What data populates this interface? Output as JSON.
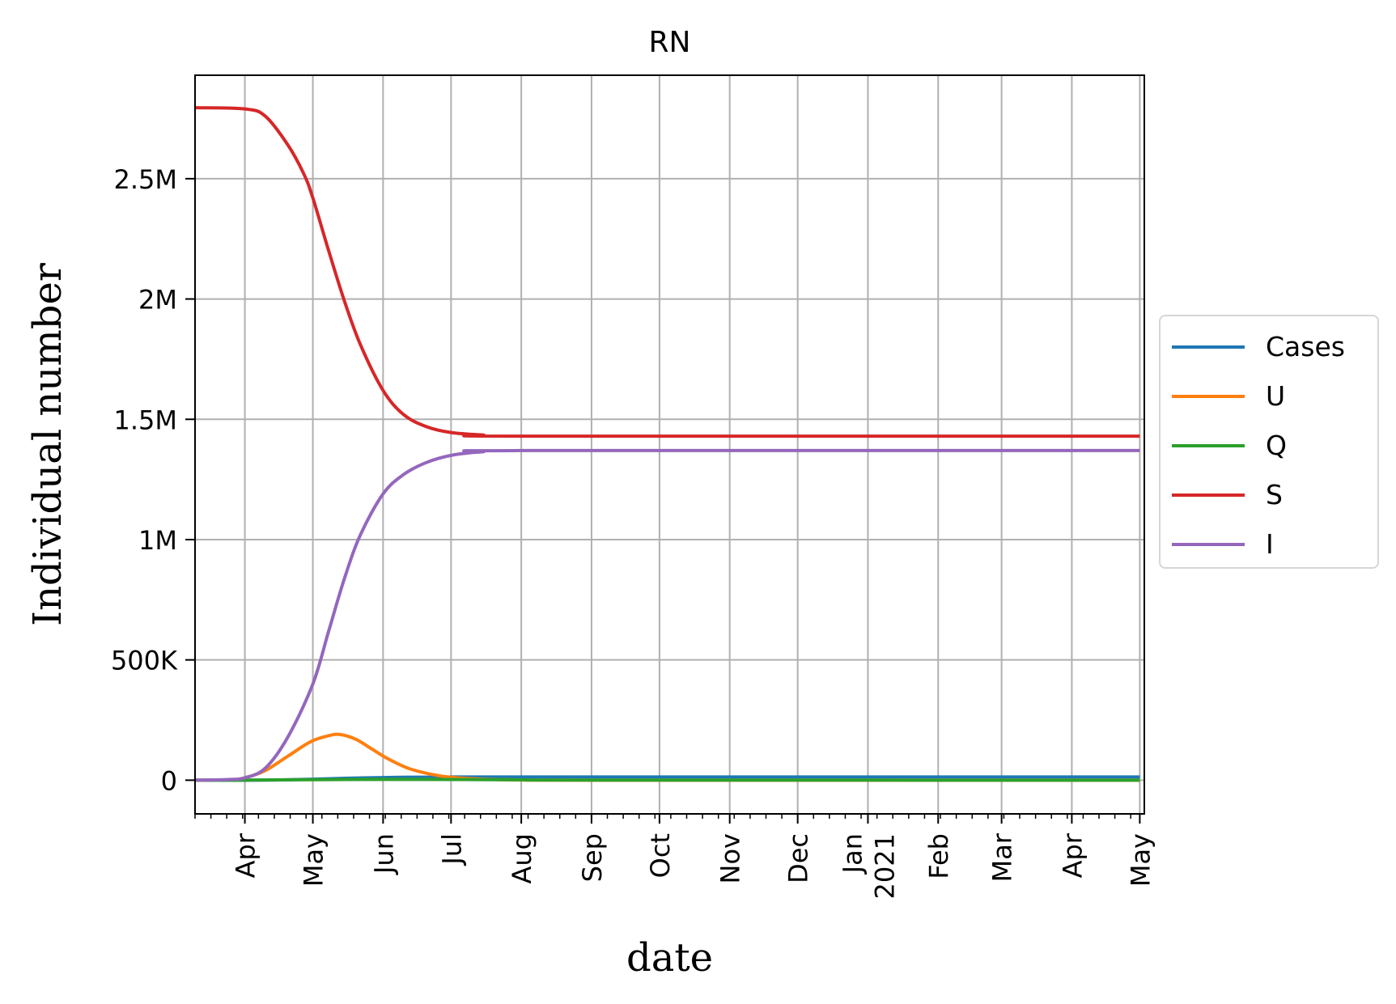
{
  "chart_data": {
    "type": "line",
    "title": "RN",
    "xlabel": "date",
    "ylabel": "Individual number",
    "x_axis": {
      "type": "date",
      "range": [
        "2020-03-10",
        "2021-05-01"
      ],
      "ticks": [
        {
          "date": "2020-04-01",
          "label": "Apr"
        },
        {
          "date": "2020-05-01",
          "label": "May"
        },
        {
          "date": "2020-06-01",
          "label": "Jun"
        },
        {
          "date": "2020-07-01",
          "label": "Jul"
        },
        {
          "date": "2020-08-01",
          "label": "Aug"
        },
        {
          "date": "2020-09-01",
          "label": "Sep"
        },
        {
          "date": "2020-10-01",
          "label": "Oct"
        },
        {
          "date": "2020-11-01",
          "label": "Nov"
        },
        {
          "date": "2020-12-01",
          "label": "Dec"
        },
        {
          "date": "2021-01-01",
          "label": "Jan\n2021"
        },
        {
          "date": "2021-02-01",
          "label": "Feb"
        },
        {
          "date": "2021-03-01",
          "label": "Mar"
        },
        {
          "date": "2021-04-01",
          "label": "Apr"
        },
        {
          "date": "2021-05-01",
          "label": "May"
        }
      ]
    },
    "y_axis": {
      "range": [
        -140000,
        2930000
      ],
      "ticks": [
        {
          "value": 0,
          "label": "0"
        },
        {
          "value": 500000,
          "label": "500K"
        },
        {
          "value": 1000000,
          "label": "1M"
        },
        {
          "value": 1500000,
          "label": "1.5M"
        },
        {
          "value": 2000000,
          "label": "2M"
        },
        {
          "value": 2500000,
          "label": "2.5M"
        }
      ]
    },
    "grid": true,
    "legend_position": "right",
    "series": [
      {
        "name": "Cases",
        "color": "#1f77b4",
        "points": [
          [
            "2020-03-10",
            0
          ],
          [
            "2020-04-01",
            100
          ],
          [
            "2020-04-15",
            1000
          ],
          [
            "2020-05-01",
            4000
          ],
          [
            "2020-05-15",
            8000
          ],
          [
            "2020-06-01",
            11000
          ],
          [
            "2020-06-15",
            12500
          ],
          [
            "2020-07-01",
            13000
          ],
          [
            "2020-08-01",
            13500
          ],
          [
            "2021-05-01",
            13500
          ]
        ]
      },
      {
        "name": "U",
        "color": "#ff7f0e",
        "points": [
          [
            "2020-03-10",
            0
          ],
          [
            "2020-03-25",
            2000
          ],
          [
            "2020-04-01",
            10000
          ],
          [
            "2020-04-10",
            40000
          ],
          [
            "2020-04-20",
            100000
          ],
          [
            "2020-04-30",
            160000
          ],
          [
            "2020-05-08",
            185000
          ],
          [
            "2020-05-13",
            190000
          ],
          [
            "2020-05-20",
            170000
          ],
          [
            "2020-05-27",
            130000
          ],
          [
            "2020-06-03",
            90000
          ],
          [
            "2020-06-12",
            50000
          ],
          [
            "2020-06-22",
            25000
          ],
          [
            "2020-07-01",
            12000
          ],
          [
            "2020-07-15",
            4000
          ],
          [
            "2020-08-01",
            1000
          ],
          [
            "2020-09-01",
            0
          ],
          [
            "2021-05-01",
            0
          ]
        ]
      },
      {
        "name": "Q",
        "color": "#2ca02c",
        "points": [
          [
            "2020-03-10",
            0
          ],
          [
            "2020-04-01",
            200
          ],
          [
            "2020-05-01",
            2000
          ],
          [
            "2020-06-01",
            3500
          ],
          [
            "2020-07-01",
            3000
          ],
          [
            "2020-08-01",
            1500
          ],
          [
            "2020-09-01",
            500
          ],
          [
            "2021-05-01",
            0
          ]
        ]
      },
      {
        "name": "S",
        "color": "#d62728",
        "points": [
          [
            "2020-03-10",
            2795000
          ],
          [
            "2020-04-01",
            2790000
          ],
          [
            "2020-04-10",
            2760000
          ],
          [
            "2020-04-20",
            2640000
          ],
          [
            "2020-04-27",
            2520000
          ],
          [
            "2020-05-01",
            2420000
          ],
          [
            "2020-05-08",
            2200000
          ],
          [
            "2020-05-15",
            1990000
          ],
          [
            "2020-05-22",
            1810000
          ],
          [
            "2020-06-01",
            1620000
          ],
          [
            "2020-06-10",
            1520000
          ],
          [
            "2020-06-20",
            1470000
          ],
          [
            "2020-07-01",
            1445000
          ],
          [
            "2020-07-15",
            1435000
          ],
          [
            "2020-08-01",
            1430000
          ],
          [
            "2021-05-01",
            1430000
          ]
        ]
      },
      {
        "name": "I",
        "color": "#9467bd",
        "points": [
          [
            "2020-03-10",
            0
          ],
          [
            "2020-03-25",
            3000
          ],
          [
            "2020-04-01",
            10000
          ],
          [
            "2020-04-10",
            50000
          ],
          [
            "2020-04-20",
            180000
          ],
          [
            "2020-05-01",
            400000
          ],
          [
            "2020-05-08",
            620000
          ],
          [
            "2020-05-15",
            840000
          ],
          [
            "2020-05-22",
            1020000
          ],
          [
            "2020-06-01",
            1190000
          ],
          [
            "2020-06-10",
            1270000
          ],
          [
            "2020-06-20",
            1320000
          ],
          [
            "2020-07-01",
            1350000
          ],
          [
            "2020-07-15",
            1365000
          ],
          [
            "2020-08-01",
            1370000
          ],
          [
            "2021-05-01",
            1370000
          ]
        ]
      }
    ]
  }
}
